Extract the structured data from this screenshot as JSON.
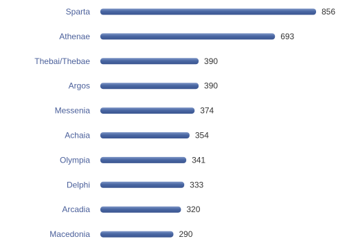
{
  "chart_data": {
    "type": "bar",
    "orientation": "horizontal",
    "categories": [
      "Sparta",
      "Athenae",
      "Thebai/Thebae",
      "Argos",
      "Messenia",
      "Achaia",
      "Olympia",
      "Delphi",
      "Arcadia",
      "Macedonia"
    ],
    "values": [
      856,
      693,
      390,
      390,
      374,
      354,
      341,
      333,
      320,
      290
    ],
    "title": "",
    "xlabel": "",
    "ylabel": "",
    "xlim": [
      0,
      856
    ],
    "grid": false,
    "legend": "none",
    "value_labels": [
      "856",
      "693",
      "390",
      "390",
      "374",
      "354",
      "341",
      "333",
      "320",
      "290"
    ],
    "colors": {
      "bar": "#4a67a3",
      "bar_highlight": "#7d95c6",
      "category_text": "#4a5f9a",
      "value_text": "#333333"
    }
  }
}
